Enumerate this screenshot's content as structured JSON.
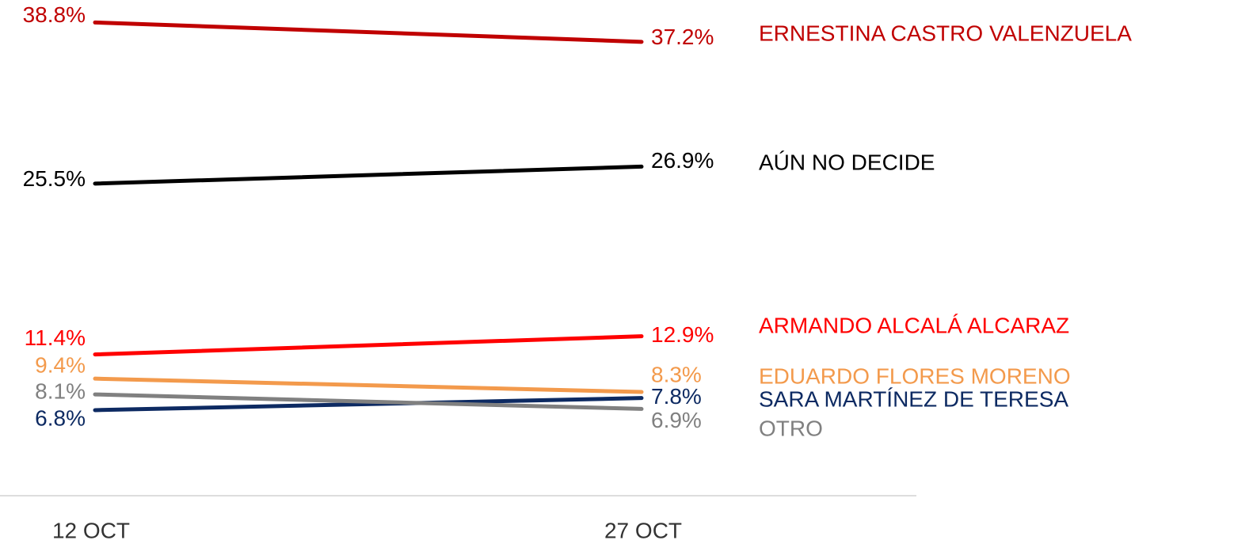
{
  "chart_data": {
    "type": "line",
    "categories": [
      "12 OCT",
      "27 OCT"
    ],
    "ylim": [
      0,
      40
    ],
    "series": [
      {
        "name": "ERNESTINA CASTRO VALENZUELA",
        "color": "#c00000",
        "values": [
          38.8,
          37.2
        ],
        "value_labels": [
          "38.8%",
          "37.2%"
        ]
      },
      {
        "name": "AÚN NO DECIDE",
        "color": "#000000",
        "values": [
          25.5,
          26.9
        ],
        "value_labels": [
          "25.5%",
          "26.9%"
        ]
      },
      {
        "name": "ARMANDO ALCALÁ ALCARAZ",
        "color": "#ff0000",
        "values": [
          11.4,
          12.9
        ],
        "value_labels": [
          "11.4%",
          "12.9%"
        ]
      },
      {
        "name": "EDUARDO FLORES MORENO",
        "color": "#f39a4c",
        "values": [
          9.4,
          8.3
        ],
        "value_labels": [
          "9.4%",
          "8.3%"
        ]
      },
      {
        "name": "SARA MARTÍNEZ DE TERESA",
        "color": "#0d2a62",
        "values": [
          6.8,
          7.8
        ],
        "value_labels": [
          "6.8%",
          "7.8%"
        ]
      },
      {
        "name": "OTRO",
        "color": "#808080",
        "values": [
          8.1,
          6.9
        ],
        "value_labels": [
          "8.1%",
          "6.9%"
        ]
      }
    ]
  }
}
